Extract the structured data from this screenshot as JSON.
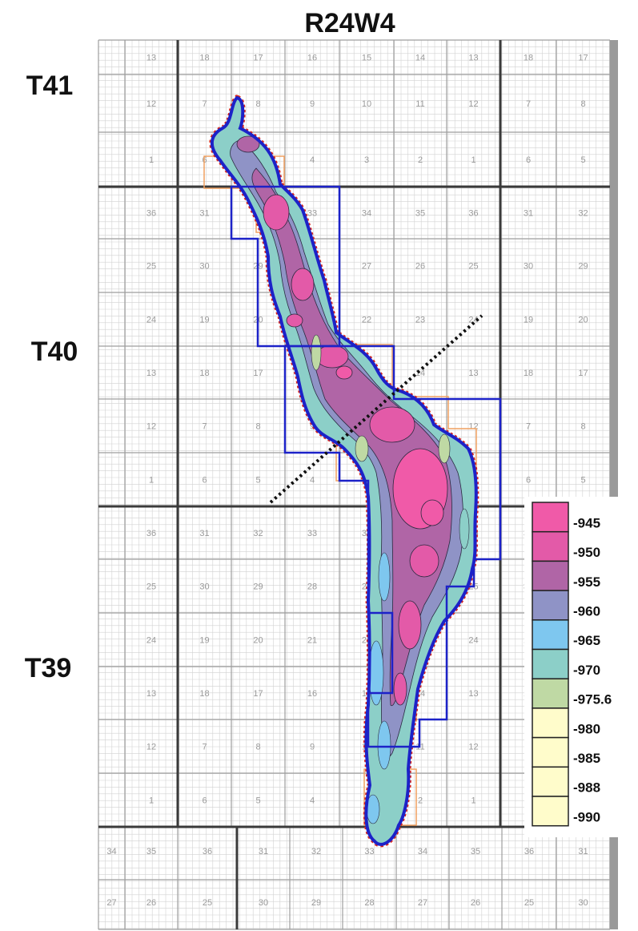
{
  "title": "R24W4",
  "township_labels": [
    "T41",
    "T40",
    "T39"
  ],
  "sections": {
    "top_strip": [
      "13",
      "18",
      "17",
      "16",
      "15",
      "14",
      "13",
      "18",
      "17"
    ],
    "t41": [
      [
        "12",
        "7",
        "8",
        "9",
        "10",
        "11",
        "12",
        "7",
        "8"
      ],
      [
        "1",
        "6",
        "5",
        "4",
        "3",
        "2",
        "1",
        "6",
        "5"
      ]
    ],
    "t40": [
      [
        "36",
        "31",
        "32",
        "33",
        "34",
        "35",
        "36",
        "31",
        "32"
      ],
      [
        "25",
        "30",
        "29",
        "28",
        "27",
        "26",
        "25",
        "30",
        "29"
      ],
      [
        "24",
        "19",
        "20",
        "21",
        "22",
        "23",
        "24",
        "19",
        "20"
      ],
      [
        "13",
        "18",
        "17",
        "16",
        "15",
        "14",
        "13",
        "18",
        "17"
      ],
      [
        "12",
        "7",
        "8",
        "9",
        "10",
        "11",
        "12",
        "7",
        "8"
      ],
      [
        "1",
        "6",
        "5",
        "4",
        "3",
        "2",
        "1",
        "6",
        "5"
      ]
    ],
    "t39": [
      [
        "36",
        "31",
        "32",
        "33",
        "34",
        "35",
        "36",
        "31",
        "32"
      ],
      [
        "25",
        "30",
        "29",
        "28",
        "27",
        "26",
        "25",
        "30",
        "29"
      ],
      [
        "24",
        "19",
        "20",
        "21",
        "22",
        "23",
        "24",
        "19",
        "20"
      ],
      [
        "13",
        "18",
        "17",
        "16",
        "15",
        "14",
        "13",
        "18",
        "17"
      ],
      [
        "12",
        "7",
        "8",
        "9",
        "10",
        "11",
        "12",
        "7",
        "8"
      ],
      [
        "1",
        "6",
        "5",
        "4",
        "3",
        "2",
        "1",
        "6",
        "5"
      ]
    ],
    "bottom_strip": [
      [
        "34",
        "35",
        "36",
        "31",
        "32",
        "33",
        "34",
        "35",
        "36",
        "31"
      ],
      [
        "27",
        "26",
        "25",
        "30",
        "29",
        "28",
        "27",
        "26",
        "25",
        "30"
      ]
    ]
  },
  "legend": [
    {
      "label": "-945",
      "color": "#f05aa8"
    },
    {
      "label": "-950",
      "color": "#e35aa8"
    },
    {
      "label": "-955",
      "color": "#b065a6"
    },
    {
      "label": "-960",
      "color": "#8f93c6"
    },
    {
      "label": "-965",
      "color": "#7ec7ef"
    },
    {
      "label": "-970",
      "color": "#8ccfc8"
    },
    {
      "label": "-975.6",
      "color": "#bfd9a4"
    },
    {
      "label": "-980",
      "color": "#fffccb"
    },
    {
      "label": "-985",
      "color": "#fffccb"
    },
    {
      "label": "-988",
      "color": "#fffccb"
    },
    {
      "label": "-990",
      "color": "#fffccb"
    }
  ],
  "colors": {
    "grid_fine": "#d2d2d2",
    "grid_section": "#9e9e9e",
    "grid_township": "#3a3a3a",
    "boundary_blue": "#1c22c8",
    "lease_orange": "#f0a060",
    "edge_red": "#d8261e"
  }
}
